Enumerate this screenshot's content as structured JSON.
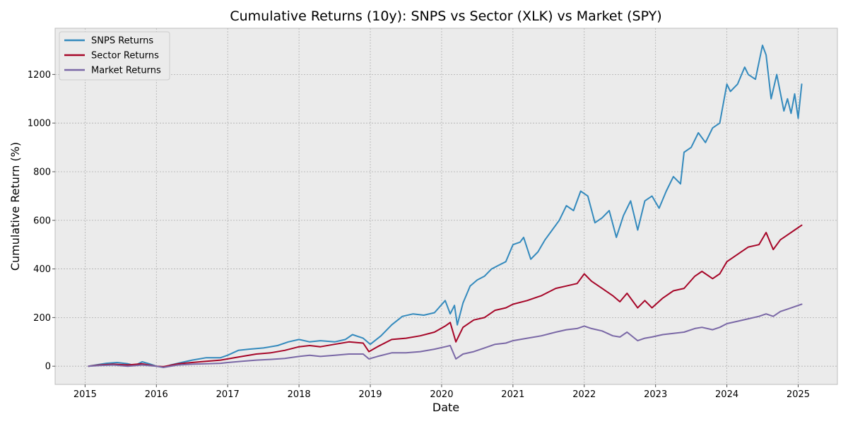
{
  "chart_data": {
    "type": "line",
    "title": "Cumulative Returns (10y): SNPS vs Sector (XLK) vs Market (SPY)",
    "xlabel": "Date",
    "ylabel": "Cumulative Return (%)",
    "xlim": [
      2014.58,
      2025.55
    ],
    "ylim": [
      -75,
      1390
    ],
    "x_ticks": [
      2015,
      2016,
      2017,
      2018,
      2019,
      2020,
      2021,
      2022,
      2023,
      2024,
      2025
    ],
    "x_tick_labels": [
      "2015",
      "2016",
      "2017",
      "2018",
      "2019",
      "2020",
      "2021",
      "2022",
      "2023",
      "2024",
      "2025"
    ],
    "y_ticks": [
      0,
      200,
      400,
      600,
      800,
      1000,
      1200
    ],
    "y_tick_labels": [
      "0",
      "200",
      "400",
      "600",
      "800",
      "1000",
      "1200"
    ],
    "grid": true,
    "legend_position": "top-left",
    "background_color": "#ebebeb",
    "series": [
      {
        "name": "SNPS Returns",
        "color": "#348abd",
        "x": [
          2015.05,
          2015.15,
          2015.3,
          2015.45,
          2015.6,
          2015.7,
          2015.8,
          2015.9,
          2016.0,
          2016.1,
          2016.2,
          2016.35,
          2016.5,
          2016.7,
          2016.9,
          2017.0,
          2017.15,
          2017.3,
          2017.5,
          2017.7,
          2017.85,
          2018.0,
          2018.15,
          2018.3,
          2018.5,
          2018.65,
          2018.75,
          2018.9,
          2019.0,
          2019.15,
          2019.3,
          2019.45,
          2019.6,
          2019.75,
          2019.9,
          2020.05,
          2020.12,
          2020.18,
          2020.22,
          2020.3,
          2020.4,
          2020.5,
          2020.6,
          2020.7,
          2020.8,
          2020.9,
          2021.0,
          2021.1,
          2021.15,
          2021.25,
          2021.35,
          2021.45,
          2021.55,
          2021.65,
          2021.75,
          2021.85,
          2021.95,
          2022.05,
          2022.15,
          2022.25,
          2022.35,
          2022.45,
          2022.55,
          2022.65,
          2022.75,
          2022.85,
          2022.95,
          2023.05,
          2023.15,
          2023.25,
          2023.35,
          2023.4,
          2023.5,
          2023.6,
          2023.7,
          2023.8,
          2023.9,
          2024.0,
          2024.05,
          2024.15,
          2024.25,
          2024.3,
          2024.4,
          2024.5,
          2024.55,
          2024.62,
          2024.7,
          2024.8,
          2024.85,
          2024.9,
          2024.95,
          2025.0,
          2025.05
        ],
        "values": [
          0,
          5,
          12,
          15,
          10,
          3,
          18,
          10,
          0,
          -5,
          5,
          15,
          25,
          35,
          35,
          45,
          65,
          70,
          75,
          85,
          100,
          110,
          100,
          105,
          100,
          110,
          130,
          115,
          90,
          125,
          170,
          205,
          215,
          210,
          220,
          270,
          215,
          250,
          170,
          260,
          330,
          355,
          370,
          400,
          415,
          430,
          500,
          510,
          530,
          440,
          470,
          520,
          560,
          600,
          660,
          640,
          720,
          700,
          590,
          610,
          640,
          530,
          620,
          680,
          560,
          680,
          700,
          650,
          720,
          780,
          750,
          880,
          900,
          960,
          920,
          980,
          1000,
          1160,
          1130,
          1160,
          1230,
          1200,
          1180,
          1320,
          1280,
          1100,
          1200,
          1050,
          1100,
          1040,
          1120,
          1020,
          1160
        ]
      },
      {
        "name": "Sector Returns",
        "color": "#a60628",
        "x": [
          2015.05,
          2015.2,
          2015.4,
          2015.6,
          2015.8,
          2016.0,
          2016.1,
          2016.3,
          2016.5,
          2016.7,
          2016.9,
          2017.0,
          2017.2,
          2017.4,
          2017.6,
          2017.8,
          2018.0,
          2018.15,
          2018.3,
          2018.5,
          2018.7,
          2018.9,
          2018.98,
          2019.1,
          2019.3,
          2019.5,
          2019.7,
          2019.9,
          2020.05,
          2020.12,
          2020.2,
          2020.3,
          2020.45,
          2020.6,
          2020.75,
          2020.9,
          2021.0,
          2021.2,
          2021.4,
          2021.6,
          2021.75,
          2021.9,
          2022.0,
          2022.1,
          2022.25,
          2022.4,
          2022.5,
          2022.6,
          2022.75,
          2022.85,
          2022.95,
          2023.1,
          2023.25,
          2023.4,
          2023.55,
          2023.65,
          2023.8,
          2023.9,
          2024.0,
          2024.15,
          2024.3,
          2024.45,
          2024.55,
          2024.65,
          2024.75,
          2024.85,
          2024.95,
          2025.05
        ],
        "values": [
          0,
          5,
          8,
          5,
          10,
          0,
          -2,
          10,
          15,
          20,
          25,
          30,
          40,
          50,
          55,
          65,
          80,
          85,
          80,
          90,
          100,
          95,
          60,
          80,
          110,
          115,
          125,
          140,
          165,
          180,
          100,
          160,
          190,
          200,
          230,
          240,
          255,
          270,
          290,
          320,
          330,
          340,
          380,
          350,
          320,
          290,
          265,
          300,
          240,
          270,
          240,
          280,
          310,
          320,
          370,
          390,
          360,
          380,
          430,
          460,
          490,
          500,
          550,
          480,
          520,
          540,
          560,
          580
        ]
      },
      {
        "name": "Market Returns",
        "color": "#7a68a6",
        "x": [
          2015.05,
          2015.2,
          2015.4,
          2015.6,
          2015.8,
          2016.0,
          2016.1,
          2016.3,
          2016.5,
          2016.7,
          2016.9,
          2017.0,
          2017.2,
          2017.4,
          2017.6,
          2017.8,
          2018.0,
          2018.15,
          2018.3,
          2018.5,
          2018.7,
          2018.9,
          2018.98,
          2019.1,
          2019.3,
          2019.5,
          2019.7,
          2019.9,
          2020.05,
          2020.12,
          2020.2,
          2020.3,
          2020.45,
          2020.6,
          2020.75,
          2020.9,
          2021.0,
          2021.2,
          2021.4,
          2021.6,
          2021.75,
          2021.9,
          2022.0,
          2022.1,
          2022.25,
          2022.4,
          2022.5,
          2022.6,
          2022.75,
          2022.85,
          2022.95,
          2023.1,
          2023.25,
          2023.4,
          2023.55,
          2023.65,
          2023.8,
          2023.9,
          2024.0,
          2024.15,
          2024.3,
          2024.45,
          2024.55,
          2024.65,
          2024.75,
          2024.85,
          2024.95,
          2025.05
        ],
        "values": [
          0,
          3,
          5,
          0,
          5,
          0,
          -5,
          5,
          8,
          10,
          12,
          15,
          20,
          25,
          28,
          32,
          40,
          45,
          40,
          45,
          50,
          50,
          30,
          40,
          55,
          55,
          60,
          70,
          80,
          85,
          30,
          50,
          60,
          75,
          90,
          95,
          105,
          115,
          125,
          140,
          150,
          155,
          165,
          155,
          145,
          125,
          120,
          140,
          105,
          115,
          120,
          130,
          135,
          140,
          155,
          160,
          150,
          160,
          175,
          185,
          195,
          205,
          215,
          205,
          225,
          235,
          245,
          255
        ]
      }
    ]
  }
}
